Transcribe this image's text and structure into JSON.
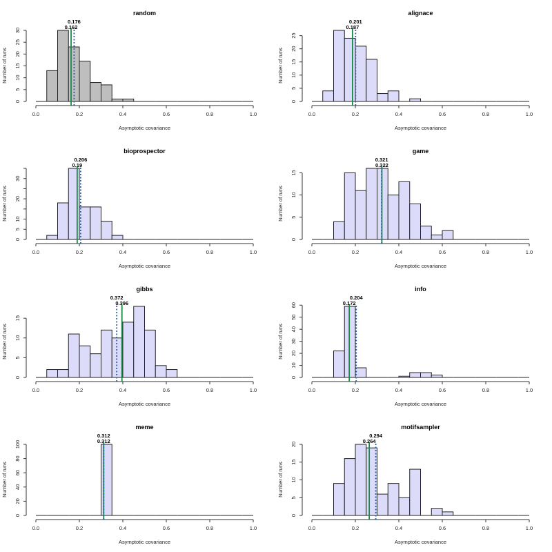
{
  "chart_data": [
    {
      "type": "bar",
      "title": "random",
      "xlabel": "Asymptotic covariance",
      "ylabel": "Number of runs",
      "xlim": [
        0,
        1
      ],
      "xticks": [
        "0.0",
        "0.2",
        "0.4",
        "0.6",
        "0.8",
        "1.0"
      ],
      "bin_width": 0.05,
      "bin_start": 0.0,
      "counts": [
        0,
        13,
        30,
        23,
        17,
        8,
        7,
        1,
        1,
        0,
        0,
        0,
        0,
        0,
        0,
        0,
        0,
        0,
        0,
        0
      ],
      "ylim": [
        0,
        30
      ],
      "yticks": [
        0,
        5,
        10,
        15,
        20,
        25,
        30
      ],
      "yticklabels": [
        "0",
        "5",
        "10",
        "15",
        "20",
        "25",
        "30"
      ],
      "bar_color": "#bebebe",
      "solid_line": {
        "value": 0.162,
        "label": "0.162",
        "color": "#1a8a4a"
      },
      "dotted_line": {
        "value": 0.176,
        "label": "0.176",
        "color": "#2c5fa0"
      }
    },
    {
      "type": "bar",
      "title": "alignace",
      "xlabel": "Asymptotic covariance",
      "ylabel": "Number of runs",
      "xlim": [
        0,
        1
      ],
      "xticks": [
        "0.0",
        "0.2",
        "0.4",
        "0.6",
        "0.8",
        "1.0"
      ],
      "bin_width": 0.05,
      "bin_start": 0.0,
      "counts": [
        0,
        4,
        27,
        24,
        21,
        16,
        3,
        4,
        0,
        1,
        0,
        0,
        0,
        0,
        0,
        0,
        0,
        0,
        0,
        0
      ],
      "ylim": [
        0,
        27
      ],
      "yticks": [
        0,
        5,
        10,
        15,
        20,
        25
      ],
      "yticklabels": [
        "0",
        "5",
        "10",
        "15",
        "20",
        "25"
      ],
      "bar_color": "#dcdcfa",
      "solid_line": {
        "value": 0.187,
        "label": "0.187",
        "color": "#1a8a4a"
      },
      "dotted_line": {
        "value": 0.201,
        "label": "0.201",
        "color": "#2c5fa0"
      }
    },
    {
      "type": "bar",
      "title": "bioprospector",
      "xlabel": "Asymptotic covariance",
      "ylabel": "Number of runs",
      "xlim": [
        0,
        1
      ],
      "xticks": [
        "0.0",
        "0.2",
        "0.4",
        "0.6",
        "0.8",
        "1.0"
      ],
      "bin_width": 0.05,
      "bin_start": 0.0,
      "counts": [
        0,
        2,
        18,
        35,
        16,
        16,
        9,
        2,
        0,
        0,
        0,
        0,
        0,
        0,
        0,
        0,
        0,
        0,
        0,
        0
      ],
      "ylim": [
        0,
        35
      ],
      "yticks": [
        0,
        5,
        10,
        15,
        20,
        25,
        30,
        35
      ],
      "yticklabels": [
        "0",
        "5",
        "10",
        "",
        "20",
        "",
        "30",
        ""
      ],
      "bar_color": "#dcdcfa",
      "solid_line": {
        "value": 0.19,
        "label": "0.19",
        "color": "#1a8a4a"
      },
      "dotted_line": {
        "value": 0.206,
        "label": "0.206",
        "color": "#2c5fa0"
      }
    },
    {
      "type": "bar",
      "title": "game",
      "xlabel": "Asymptotic covariance",
      "ylabel": "Number of runs",
      "xlim": [
        0,
        1
      ],
      "xticks": [
        "0.0",
        "0.2",
        "0.4",
        "0.6",
        "0.8",
        "1.0"
      ],
      "bin_width": 0.05,
      "bin_start": 0.0,
      "counts": [
        0,
        0,
        4,
        15,
        11,
        16,
        16,
        10,
        13,
        8,
        3,
        1,
        2,
        0,
        0,
        0,
        0,
        0,
        0,
        0
      ],
      "ylim": [
        0,
        16
      ],
      "yticks": [
        0,
        5,
        10,
        15
      ],
      "yticklabels": [
        "0",
        "5",
        "10",
        "15"
      ],
      "bar_color": "#dcdcfa",
      "solid_line": {
        "value": 0.322,
        "label": "0.322",
        "color": "#1a8a4a"
      },
      "dotted_line": {
        "value": 0.321,
        "label": "0.321",
        "color": "#2c5fa0"
      }
    },
    {
      "type": "bar",
      "title": "gibbs",
      "xlabel": "Asymptotic covariance",
      "ylabel": "Number of runs",
      "xlim": [
        0,
        1
      ],
      "xticks": [
        "0.0",
        "0.2",
        "0.4",
        "0.6",
        "0.8",
        "1.0"
      ],
      "bin_width": 0.05,
      "bin_start": 0.0,
      "counts": [
        0,
        2,
        2,
        11,
        8,
        6,
        12,
        10,
        14,
        18,
        12,
        3,
        2,
        0,
        0,
        0,
        0,
        0,
        0,
        0
      ],
      "ylim": [
        0,
        18
      ],
      "yticks": [
        0,
        5,
        10,
        15
      ],
      "yticklabels": [
        "0",
        "5",
        "10",
        "15"
      ],
      "bar_color": "#dcdcfa",
      "solid_line": {
        "value": 0.396,
        "label": "0.396",
        "color": "#1a8a4a"
      },
      "dotted_line": {
        "value": 0.372,
        "label": "0.372",
        "color": "#2c5fa0"
      }
    },
    {
      "type": "bar",
      "title": "info",
      "xlabel": "Asymptotic covariance",
      "ylabel": "Number of runs",
      "xlim": [
        0,
        1
      ],
      "xticks": [
        "0.0",
        "0.2",
        "0.4",
        "0.6",
        "0.8",
        "1.0"
      ],
      "bin_width": 0.05,
      "bin_start": 0.0,
      "counts": [
        0,
        0,
        22,
        59,
        8,
        0,
        0,
        0,
        1,
        4,
        4,
        2,
        0,
        0,
        0,
        0,
        0,
        0,
        0,
        0
      ],
      "ylim": [
        0,
        59
      ],
      "yticks": [
        0,
        10,
        20,
        30,
        40,
        50,
        60
      ],
      "yticklabels": [
        "0",
        "10",
        "20",
        "30",
        "40",
        "50",
        "60"
      ],
      "bar_color": "#dcdcfa",
      "solid_line": {
        "value": 0.172,
        "label": "0.172",
        "color": "#1a8a4a"
      },
      "dotted_line": {
        "value": 0.204,
        "label": "0.204",
        "color": "#2c5fa0"
      }
    },
    {
      "type": "bar",
      "title": "meme",
      "xlabel": "Asymptotic covariance",
      "ylabel": "Number of runs",
      "xlim": [
        0,
        1
      ],
      "xticks": [
        "0.0",
        "0.2",
        "0.4",
        "0.6",
        "0.8",
        "1.0"
      ],
      "bin_width": 0.05,
      "bin_start": 0.0,
      "counts": [
        0,
        0,
        0,
        0,
        0,
        0,
        100,
        0,
        0,
        0,
        0,
        0,
        0,
        0,
        0,
        0,
        0,
        0,
        0,
        0
      ],
      "ylim": [
        0,
        100
      ],
      "yticks": [
        0,
        20,
        40,
        60,
        80,
        100
      ],
      "yticklabels": [
        "0",
        "20",
        "40",
        "60",
        "80",
        "100"
      ],
      "bar_color": "#dcdcfa",
      "solid_line": {
        "value": 0.312,
        "label": "0.312",
        "color": "#1a8a4a"
      },
      "dotted_line": {
        "value": 0.312,
        "label": "0.312",
        "color": "#2c5fa0"
      }
    },
    {
      "type": "bar",
      "title": "motifsampler",
      "xlabel": "Asymptotic covariance",
      "ylabel": "Number of runs",
      "xlim": [
        0,
        1
      ],
      "xticks": [
        "0.0",
        "0.2",
        "0.4",
        "0.6",
        "0.8",
        "1.0"
      ],
      "bin_width": 0.05,
      "bin_start": 0.0,
      "counts": [
        0,
        0,
        9,
        16,
        20,
        19,
        6,
        9,
        5,
        13,
        0,
        2,
        1,
        0,
        0,
        0,
        0,
        0,
        0,
        0
      ],
      "ylim": [
        0,
        20
      ],
      "yticks": [
        0,
        5,
        10,
        15,
        20
      ],
      "yticklabels": [
        "0",
        "5",
        "10",
        "15",
        "20"
      ],
      "bar_color": "#dcdcfa",
      "solid_line": {
        "value": 0.264,
        "label": "0.264",
        "color": "#1a8a4a"
      },
      "dotted_line": {
        "value": 0.294,
        "label": "0.294",
        "color": "#2c5fa0"
      }
    }
  ]
}
